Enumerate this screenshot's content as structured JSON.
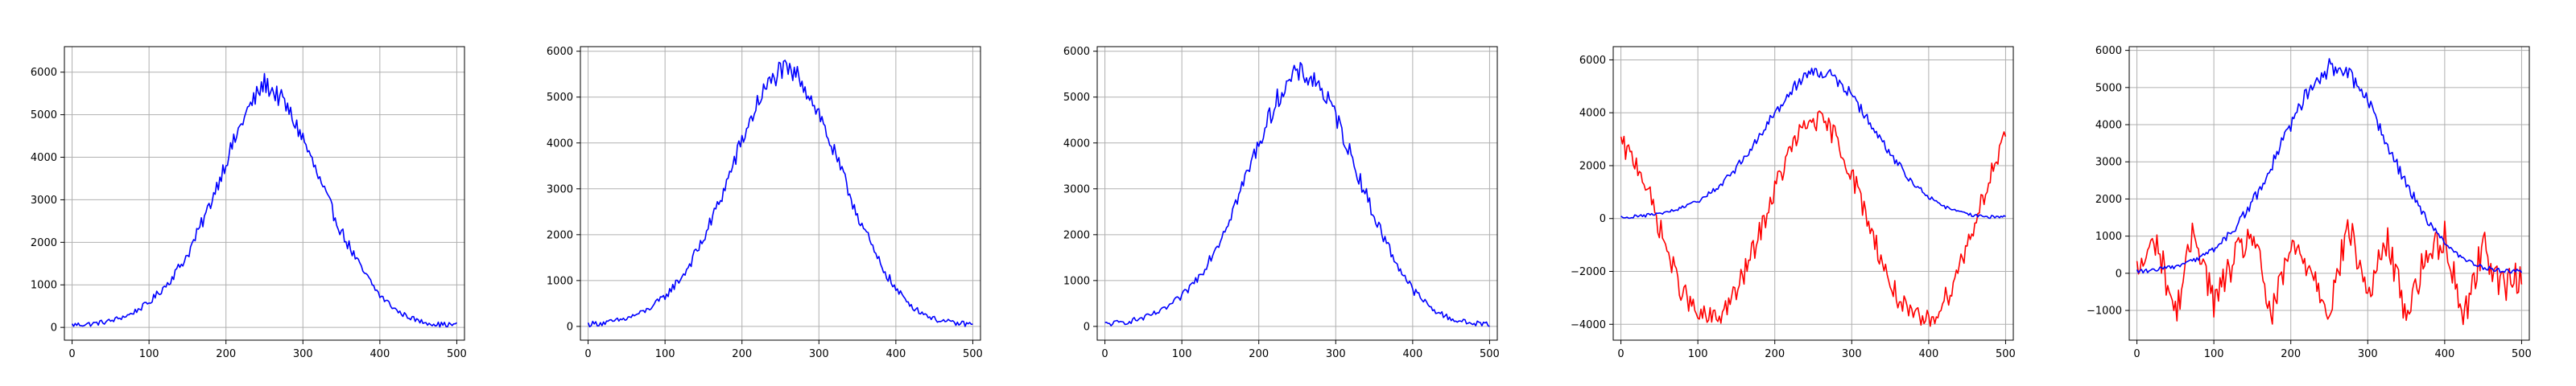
{
  "chart_data": [
    {
      "type": "line",
      "grid": true,
      "xlim": [
        -10,
        510
      ],
      "ylim": [
        -300,
        6600
      ],
      "x_ticks": [
        0,
        100,
        200,
        300,
        400,
        500
      ],
      "y_ticks": [
        0,
        1000,
        2000,
        3000,
        4000,
        5000,
        6000
      ],
      "x_tick_labels": [
        "0",
        "100",
        "200",
        "300",
        "400",
        "500"
      ],
      "y_tick_labels": [
        "0",
        "1000",
        "2000",
        "3000",
        "4000",
        "5000",
        "6000"
      ],
      "series": [
        {
          "color": "#0000ff",
          "x": [
            0,
            25,
            50,
            75,
            100,
            125,
            150,
            175,
            200,
            225,
            250,
            275,
            300,
            325,
            350,
            375,
            400,
            425,
            450,
            475,
            500
          ],
          "values": [
            60,
            80,
            150,
            300,
            580,
            1050,
            1700,
            2700,
            3900,
            5000,
            5750,
            5300,
            4450,
            3300,
            2250,
            1400,
            750,
            350,
            150,
            70,
            60
          ]
        }
      ]
    },
    {
      "type": "line",
      "grid": true,
      "xlim": [
        -10,
        510
      ],
      "ylim": [
        -300,
        6100
      ],
      "x_ticks": [
        0,
        100,
        200,
        300,
        400,
        500
      ],
      "y_ticks": [
        0,
        1000,
        2000,
        3000,
        4000,
        5000,
        6000
      ],
      "x_tick_labels": [
        "0",
        "100",
        "200",
        "300",
        "400",
        "500"
      ],
      "y_tick_labels": [
        "0",
        "1000",
        "2000",
        "3000",
        "4000",
        "5000",
        "6000"
      ],
      "series": [
        {
          "color": "#0000ff",
          "x": [
            0,
            25,
            50,
            75,
            100,
            125,
            150,
            175,
            200,
            225,
            250,
            275,
            300,
            325,
            350,
            375,
            400,
            425,
            450,
            475,
            500
          ],
          "values": [
            50,
            80,
            170,
            340,
            650,
            1150,
            1900,
            2900,
            4050,
            5050,
            5600,
            5450,
            4650,
            3550,
            2450,
            1500,
            800,
            380,
            160,
            70,
            50
          ]
        }
      ]
    },
    {
      "type": "line",
      "grid": true,
      "xlim": [
        -10,
        510
      ],
      "ylim": [
        -300,
        6100
      ],
      "x_ticks": [
        0,
        100,
        200,
        300,
        400,
        500
      ],
      "y_ticks": [
        0,
        1000,
        2000,
        3000,
        4000,
        5000,
        6000
      ],
      "x_tick_labels": [
        "0",
        "100",
        "200",
        "300",
        "400",
        "500"
      ],
      "y_tick_labels": [
        "0",
        "1000",
        "2000",
        "3000",
        "4000",
        "5000",
        "6000"
      ],
      "series": [
        {
          "color": "#0000ff",
          "x": [
            0,
            25,
            50,
            75,
            100,
            125,
            150,
            175,
            200,
            225,
            250,
            275,
            300,
            325,
            350,
            375,
            400,
            425,
            450,
            475,
            500
          ],
          "values": [
            50,
            90,
            180,
            350,
            650,
            1150,
            1900,
            2900,
            4000,
            5000,
            5550,
            5350,
            4600,
            3500,
            2400,
            1500,
            800,
            380,
            160,
            70,
            50
          ]
        }
      ]
    },
    {
      "type": "line",
      "grid": true,
      "xlim": [
        -10,
        510
      ],
      "ylim": [
        -4600,
        6500
      ],
      "x_ticks": [
        0,
        100,
        200,
        300,
        400,
        500
      ],
      "y_ticks": [
        -4000,
        -2000,
        0,
        2000,
        4000,
        6000
      ],
      "x_tick_labels": [
        "0",
        "100",
        "200",
        "300",
        "400",
        "500"
      ],
      "y_tick_labels": [
        "−4000",
        "−2000",
        "0",
        "2000",
        "4000",
        "6000"
      ],
      "series": [
        {
          "color": "#ff0000",
          "x": [
            0,
            25,
            50,
            75,
            100,
            125,
            150,
            175,
            200,
            225,
            250,
            275,
            300,
            325,
            350,
            375,
            400,
            425,
            450,
            475,
            500
          ],
          "values": [
            2800,
            1900,
            -300,
            -2500,
            -3700,
            -3800,
            -2800,
            -1000,
            1100,
            2900,
            3800,
            3300,
            1700,
            -400,
            -2500,
            -3700,
            -3900,
            -2900,
            -1000,
            1200,
            3000
          ]
        },
        {
          "color": "#0000ff",
          "x": [
            0,
            25,
            50,
            75,
            100,
            125,
            150,
            175,
            200,
            225,
            250,
            275,
            300,
            325,
            350,
            375,
            400,
            425,
            450,
            475,
            500
          ],
          "values": [
            50,
            90,
            180,
            350,
            650,
            1150,
            1900,
            2900,
            4000,
            5000,
            5600,
            5400,
            4650,
            3550,
            2450,
            1500,
            800,
            380,
            160,
            70,
            50
          ]
        }
      ]
    },
    {
      "type": "line",
      "grid": true,
      "xlim": [
        -10,
        510
      ],
      "ylim": [
        -1800,
        6100
      ],
      "x_ticks": [
        0,
        100,
        200,
        300,
        400,
        500
      ],
      "y_ticks": [
        -1000,
        0,
        1000,
        2000,
        3000,
        4000,
        5000,
        6000
      ],
      "x_tick_labels": [
        "0",
        "100",
        "200",
        "300",
        "400",
        "500"
      ],
      "y_tick_labels": [
        "−1000",
        "0",
        "1000",
        "2000",
        "3000",
        "4000",
        "5000",
        "6000"
      ],
      "series": [
        {
          "color": "#ff0000",
          "x": [
            0,
            25,
            50,
            75,
            100,
            125,
            150,
            175,
            200,
            225,
            250,
            275,
            300,
            325,
            350,
            375,
            400,
            425,
            450,
            475,
            500
          ],
          "values": [
            0,
            900,
            -1100,
            1200,
            -800,
            300,
            1100,
            -1200,
            700,
            200,
            -1000,
            1300,
            -600,
            900,
            -1100,
            400,
            1000,
            -1200,
            800,
            -400,
            0
          ]
        },
        {
          "color": "#0000ff",
          "x": [
            0,
            25,
            50,
            75,
            100,
            125,
            150,
            175,
            200,
            225,
            250,
            275,
            300,
            325,
            350,
            375,
            400,
            425,
            450,
            475,
            500
          ],
          "values": [
            50,
            90,
            180,
            350,
            650,
            1150,
            1900,
            2900,
            4000,
            5000,
            5550,
            5350,
            4600,
            3500,
            2400,
            1500,
            800,
            380,
            160,
            70,
            50
          ]
        }
      ]
    }
  ]
}
